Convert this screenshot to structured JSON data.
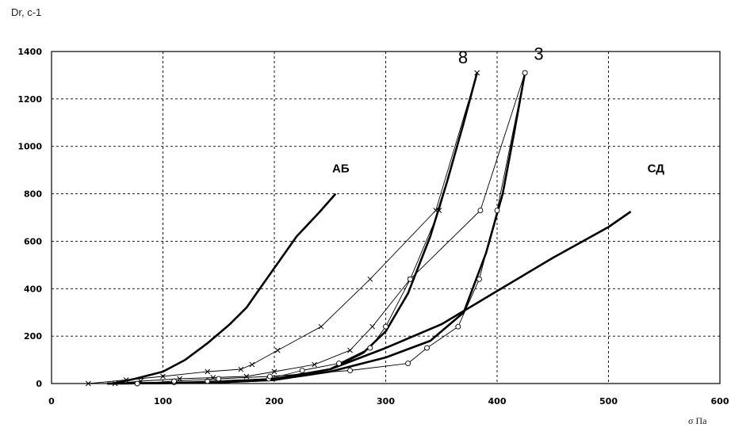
{
  "chart_data": {
    "type": "line",
    "ylabel": "Dr, с-1",
    "xlabel": "σ Па",
    "xlim": [
      0,
      600
    ],
    "ylim": [
      0,
      1400
    ],
    "x_ticks": [
      0,
      100,
      200,
      300,
      400,
      500,
      600
    ],
    "y_ticks": [
      0,
      200,
      400,
      600,
      800,
      1000,
      1200,
      1400
    ],
    "grid": true,
    "grid_style": "dashed",
    "series": [
      {
        "name": "АБ",
        "marker": "none",
        "width": "thick",
        "x": [
          55,
          75,
          100,
          120,
          140,
          160,
          175,
          190,
          205,
          220,
          240,
          255
        ],
        "y": [
          0,
          20,
          50,
          100,
          170,
          250,
          320,
          420,
          520,
          620,
          720,
          800
        ]
      },
      {
        "name": "СД",
        "marker": "none",
        "width": "thick",
        "x": [
          50,
          100,
          150,
          200,
          250,
          300,
          350,
          400,
          450,
          500,
          520
        ],
        "y": [
          0,
          2,
          5,
          15,
          60,
          150,
          250,
          390,
          530,
          660,
          725
        ]
      },
      {
        "name": "8",
        "marker": "none",
        "width": "thick",
        "x": [
          50,
          100,
          150,
          200,
          250,
          280,
          300,
          320,
          340,
          355,
          370,
          382
        ],
        "y": [
          0,
          2,
          5,
          20,
          60,
          130,
          220,
          380,
          620,
          850,
          1100,
          1310
        ]
      },
      {
        "name": "3",
        "marker": "none",
        "width": "thick",
        "x": [
          50,
          100,
          150,
          200,
          250,
          300,
          340,
          370,
          390,
          405,
          415,
          425
        ],
        "y": [
          0,
          2,
          5,
          15,
          50,
          110,
          180,
          300,
          550,
          800,
          1050,
          1310
        ]
      },
      {
        "name": "",
        "marker": "x",
        "width": "thin",
        "x": [
          33,
          67,
          100,
          140,
          170,
          180,
          203,
          242,
          286,
          345,
          382
        ],
        "y": [
          0,
          15,
          30,
          50,
          60,
          80,
          140,
          240,
          440,
          730,
          1310
        ]
      },
      {
        "name": "",
        "marker": "x",
        "width": "thin",
        "x": [
          57,
          80,
          115,
          145,
          175,
          200,
          236,
          268,
          288,
          322,
          348,
          382
        ],
        "y": [
          0,
          10,
          20,
          25,
          30,
          50,
          80,
          140,
          240,
          440,
          730,
          1310
        ]
      },
      {
        "name": "",
        "marker": "o",
        "width": "thin",
        "x": [
          110,
          140,
          195,
          225,
          258,
          286,
          300,
          322,
          385,
          425
        ],
        "y": [
          5,
          10,
          20,
          55,
          85,
          150,
          240,
          440,
          730,
          1310
        ]
      },
      {
        "name": "",
        "marker": "o",
        "width": "thin",
        "x": [
          77,
          110,
          150,
          196,
          268,
          320,
          337,
          365,
          384,
          400,
          425
        ],
        "y": [
          0,
          10,
          20,
          30,
          55,
          85,
          150,
          240,
          440,
          730,
          1310
        ]
      }
    ],
    "annotations": [
      {
        "text": "АБ",
        "x": 252,
        "y": 890
      },
      {
        "text": "СД",
        "x": 535,
        "y": 890
      },
      {
        "text": "8",
        "x": 365,
        "y": 1350
      },
      {
        "text": "3",
        "x": 433,
        "y": 1365
      }
    ]
  }
}
